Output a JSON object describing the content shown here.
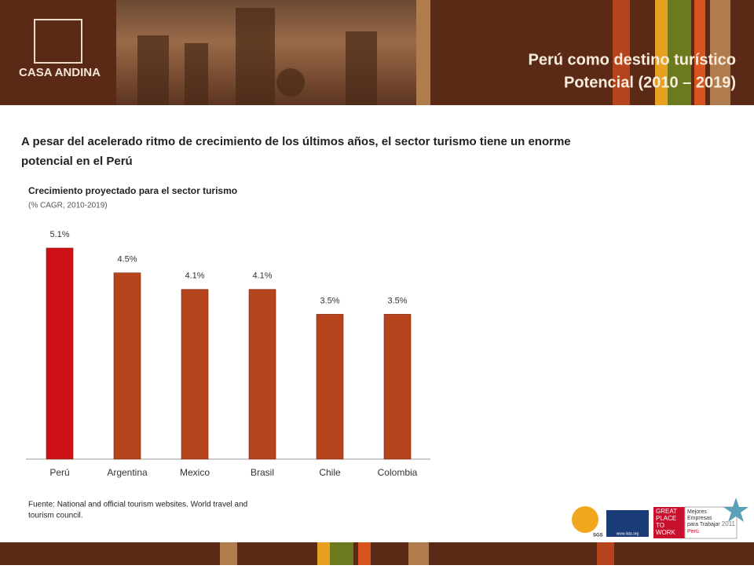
{
  "brand": "CASA ANDINA",
  "header": {
    "title_lines": [
      "Perú como destino turístico",
      "Potencial (2010 – 2019)"
    ]
  },
  "lead_lines": [
    "A pesar del acelerado ritmo de crecimiento de los últimos años, el sector turismo tiene un enorme",
    "potencial en el Perú"
  ],
  "chart_data": {
    "type": "bar",
    "title": "Crecimiento proyectado para el sector turismo",
    "subtitle": "(% CAGR, 2010-2019)",
    "categories": [
      "Perú",
      "Argentina",
      "Mexico",
      "Brasil",
      "Chile",
      "Colombia"
    ],
    "values": [
      5.1,
      4.5,
      4.1,
      4.1,
      3.5,
      3.5
    ],
    "value_labels": [
      "5.1%",
      "4.5%",
      "4.1%",
      "4.1%",
      "3.5%",
      "3.5%"
    ],
    "colors": [
      "#cc1016",
      "#b5431b",
      "#b5431b",
      "#b5431b",
      "#b5431b",
      "#b5431b"
    ],
    "ylim": [
      0,
      5.1
    ]
  },
  "source_lines": [
    "Fuente: National and official tourism websites. World travel and",
    "tourism council."
  ],
  "logos": {
    "sgs": "SGS",
    "iata": "www.iata.org",
    "gptw": [
      "GREAT",
      "PLACE",
      "TO",
      "WORK"
    ],
    "gptw_caption": [
      "Mejores",
      "Empresas",
      "para Trabajar",
      "Perú"
    ],
    "year": "2011"
  }
}
